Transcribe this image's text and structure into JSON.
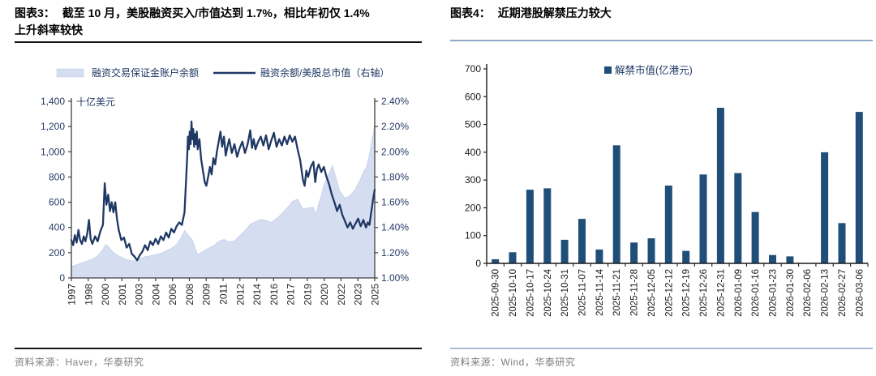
{
  "left_panel": {
    "title_prefix": "图表3：",
    "title_line1": "截至 10 月，美股融资买入/市值达到 1.7%，相比年初仅 1.4%",
    "title_line2": "上升斜率较快",
    "source": "资料来源：Haver，华泰研究"
  },
  "right_panel": {
    "title_prefix": "图表4：",
    "title": "近期港股解禁压力较大",
    "source": "资料来源：Wind，华泰研究"
  },
  "colors": {
    "line_navy": "#1F3864",
    "bar_blue": "#1F4E79",
    "area_fill": "#D5DDF0",
    "area_edge": "#BCC8E6",
    "legend_text": "#1F3864",
    "axis_navy": "#253A66",
    "axis_line": "#404040",
    "tick_text": "#1A1A1A",
    "year_text": "#262626"
  },
  "chart_data": [
    {
      "type": "area+line",
      "title": "截至10月，美股融资买入/市值达到1.7%，相比年初仅1.4%上升斜率较快",
      "unit_label": "十亿美元",
      "legend": [
        "融资交易保证金账户余额",
        "融资余额/美股总市值（右轴）"
      ],
      "x_range": [
        1997,
        2025.83
      ],
      "x_tick_labels": [
        "1997",
        "1998",
        "2000",
        "2001",
        "2003",
        "2004",
        "2006",
        "2008",
        "2009",
        "2011",
        "2012",
        "2014",
        "2016",
        "2017",
        "2019",
        "2020",
        "2022",
        "2023",
        "2025"
      ],
      "left_axis": {
        "min": 0,
        "max": 1400,
        "step": 200,
        "tick_labels": [
          "0",
          "200",
          "400",
          "600",
          "800",
          "1,000",
          "1,200",
          "1,400"
        ]
      },
      "right_axis": {
        "min": 1.0,
        "max": 2.4,
        "step": 0.2,
        "tick_labels": [
          "1.00%",
          "1.20%",
          "1.40%",
          "1.60%",
          "1.80%",
          "2.00%",
          "2.20%",
          "2.40%"
        ]
      },
      "area_series": {
        "name": "融资交易保证金账户余额",
        "points": [
          [
            1997.0,
            90
          ],
          [
            1997.5,
            105
          ],
          [
            1998.0,
            120
          ],
          [
            1998.5,
            135
          ],
          [
            1999.0,
            150
          ],
          [
            1999.5,
            175
          ],
          [
            2000.0,
            225
          ],
          [
            2000.25,
            265
          ],
          [
            2000.5,
            250
          ],
          [
            2000.75,
            225
          ],
          [
            2001.0,
            200
          ],
          [
            2001.5,
            175
          ],
          [
            2002.0,
            155
          ],
          [
            2002.5,
            140
          ],
          [
            2003.0,
            135
          ],
          [
            2003.5,
            150
          ],
          [
            2004.0,
            170
          ],
          [
            2004.5,
            175
          ],
          [
            2005.0,
            185
          ],
          [
            2005.5,
            195
          ],
          [
            2006.0,
            215
          ],
          [
            2006.5,
            235
          ],
          [
            2007.0,
            265
          ],
          [
            2007.5,
            330
          ],
          [
            2007.75,
            375
          ],
          [
            2008.0,
            350
          ],
          [
            2008.5,
            300
          ],
          [
            2009.0,
            185
          ],
          [
            2009.5,
            210
          ],
          [
            2010.0,
            235
          ],
          [
            2010.5,
            255
          ],
          [
            2011.0,
            290
          ],
          [
            2011.5,
            305
          ],
          [
            2012.0,
            285
          ],
          [
            2012.5,
            295
          ],
          [
            2013.0,
            335
          ],
          [
            2013.5,
            375
          ],
          [
            2014.0,
            425
          ],
          [
            2014.5,
            445
          ],
          [
            2015.0,
            465
          ],
          [
            2015.5,
            455
          ],
          [
            2016.0,
            440
          ],
          [
            2016.5,
            470
          ],
          [
            2017.0,
            510
          ],
          [
            2017.5,
            555
          ],
          [
            2018.0,
            605
          ],
          [
            2018.5,
            625
          ],
          [
            2019.0,
            545
          ],
          [
            2019.5,
            555
          ],
          [
            2020.0,
            560
          ],
          [
            2020.25,
            500
          ],
          [
            2020.5,
            590
          ],
          [
            2020.75,
            650
          ],
          [
            2021.0,
            740
          ],
          [
            2021.5,
            830
          ],
          [
            2021.83,
            890
          ],
          [
            2022.0,
            840
          ],
          [
            2022.5,
            690
          ],
          [
            2023.0,
            630
          ],
          [
            2023.5,
            655
          ],
          [
            2024.0,
            705
          ],
          [
            2024.5,
            790
          ],
          [
            2024.83,
            855
          ],
          [
            2025.0,
            865
          ],
          [
            2025.25,
            950
          ],
          [
            2025.5,
            1060
          ],
          [
            2025.67,
            1140
          ],
          [
            2025.83,
            1230
          ]
        ]
      },
      "line_series": {
        "name": "融资余额/美股总市值（右轴）",
        "points": [
          [
            1997.0,
            1.3
          ],
          [
            1997.17,
            1.26
          ],
          [
            1997.33,
            1.34
          ],
          [
            1997.5,
            1.28
          ],
          [
            1997.67,
            1.38
          ],
          [
            1997.83,
            1.3
          ],
          [
            1998.0,
            1.27
          ],
          [
            1998.17,
            1.33
          ],
          [
            1998.33,
            1.29
          ],
          [
            1998.5,
            1.35
          ],
          [
            1998.67,
            1.46
          ],
          [
            1998.83,
            1.31
          ],
          [
            1999.0,
            1.27
          ],
          [
            1999.25,
            1.33
          ],
          [
            1999.5,
            1.29
          ],
          [
            1999.75,
            1.37
          ],
          [
            2000.0,
            1.42
          ],
          [
            2000.17,
            1.75
          ],
          [
            2000.33,
            1.58
          ],
          [
            2000.5,
            1.66
          ],
          [
            2000.67,
            1.53
          ],
          [
            2000.83,
            1.6
          ],
          [
            2001.0,
            1.52
          ],
          [
            2001.17,
            1.6
          ],
          [
            2001.33,
            1.47
          ],
          [
            2001.5,
            1.38
          ],
          [
            2001.75,
            1.3
          ],
          [
            2002.0,
            1.32
          ],
          [
            2002.25,
            1.24
          ],
          [
            2002.5,
            1.27
          ],
          [
            2002.75,
            1.19
          ],
          [
            2003.0,
            1.17
          ],
          [
            2003.25,
            1.14
          ],
          [
            2003.5,
            1.18
          ],
          [
            2003.75,
            1.21
          ],
          [
            2004.0,
            1.26
          ],
          [
            2004.25,
            1.22
          ],
          [
            2004.5,
            1.29
          ],
          [
            2004.75,
            1.26
          ],
          [
            2005.0,
            1.31
          ],
          [
            2005.25,
            1.27
          ],
          [
            2005.5,
            1.33
          ],
          [
            2005.75,
            1.3
          ],
          [
            2006.0,
            1.36
          ],
          [
            2006.25,
            1.32
          ],
          [
            2006.5,
            1.39
          ],
          [
            2006.75,
            1.36
          ],
          [
            2007.0,
            1.41
          ],
          [
            2007.25,
            1.44
          ],
          [
            2007.5,
            1.42
          ],
          [
            2007.75,
            1.52
          ],
          [
            2008.0,
            1.95
          ],
          [
            2008.08,
            2.12
          ],
          [
            2008.17,
            2.02
          ],
          [
            2008.25,
            2.16
          ],
          [
            2008.33,
            2.06
          ],
          [
            2008.42,
            2.24
          ],
          [
            2008.5,
            2.1
          ],
          [
            2008.58,
            2.18
          ],
          [
            2008.67,
            2.04
          ],
          [
            2008.75,
            2.14
          ],
          [
            2008.83,
            2.06
          ],
          [
            2008.92,
            2.16
          ],
          [
            2009.0,
            2.02
          ],
          [
            2009.17,
            2.1
          ],
          [
            2009.33,
            1.94
          ],
          [
            2009.5,
            1.85
          ],
          [
            2009.67,
            1.76
          ],
          [
            2009.83,
            1.73
          ],
          [
            2010.0,
            1.8
          ],
          [
            2010.17,
            1.88
          ],
          [
            2010.33,
            1.82
          ],
          [
            2010.5,
            1.95
          ],
          [
            2010.67,
            1.9
          ],
          [
            2010.83,
            2.0
          ],
          [
            2011.0,
            2.08
          ],
          [
            2011.17,
            2.16
          ],
          [
            2011.33,
            2.04
          ],
          [
            2011.5,
            2.12
          ],
          [
            2011.67,
            1.97
          ],
          [
            2011.83,
            2.04
          ],
          [
            2012.0,
            2.1
          ],
          [
            2012.25,
            1.99
          ],
          [
            2012.5,
            2.06
          ],
          [
            2012.75,
            1.96
          ],
          [
            2013.0,
            2.03
          ],
          [
            2013.25,
            2.08
          ],
          [
            2013.5,
            1.99
          ],
          [
            2013.75,
            2.06
          ],
          [
            2014.0,
            2.17
          ],
          [
            2014.17,
            2.03
          ],
          [
            2014.33,
            2.1
          ],
          [
            2014.5,
            2.02
          ],
          [
            2014.75,
            2.08
          ],
          [
            2015.0,
            2.12
          ],
          [
            2015.25,
            2.05
          ],
          [
            2015.5,
            2.13
          ],
          [
            2015.75,
            2.02
          ],
          [
            2016.0,
            2.09
          ],
          [
            2016.25,
            2.15
          ],
          [
            2016.5,
            2.04
          ],
          [
            2016.75,
            2.1
          ],
          [
            2017.0,
            2.05
          ],
          [
            2017.25,
            2.12
          ],
          [
            2017.5,
            2.06
          ],
          [
            2017.75,
            2.13
          ],
          [
            2018.0,
            2.08
          ],
          [
            2018.25,
            2.12
          ],
          [
            2018.5,
            2.02
          ],
          [
            2018.75,
            1.93
          ],
          [
            2019.0,
            1.78
          ],
          [
            2019.17,
            1.73
          ],
          [
            2019.33,
            1.85
          ],
          [
            2019.5,
            1.8
          ],
          [
            2019.75,
            1.88
          ],
          [
            2020.0,
            1.92
          ],
          [
            2020.17,
            1.76
          ],
          [
            2020.33,
            1.86
          ],
          [
            2020.5,
            1.9
          ],
          [
            2020.75,
            1.84
          ],
          [
            2021.0,
            1.88
          ],
          [
            2021.25,
            1.8
          ],
          [
            2021.5,
            1.74
          ],
          [
            2021.75,
            1.66
          ],
          [
            2022.0,
            1.6
          ],
          [
            2022.25,
            1.53
          ],
          [
            2022.5,
            1.58
          ],
          [
            2022.75,
            1.5
          ],
          [
            2023.0,
            1.45
          ],
          [
            2023.25,
            1.4
          ],
          [
            2023.5,
            1.44
          ],
          [
            2023.75,
            1.39
          ],
          [
            2024.0,
            1.43
          ],
          [
            2024.25,
            1.47
          ],
          [
            2024.5,
            1.41
          ],
          [
            2024.75,
            1.46
          ],
          [
            2025.0,
            1.4
          ],
          [
            2025.17,
            1.44
          ],
          [
            2025.33,
            1.42
          ],
          [
            2025.5,
            1.52
          ],
          [
            2025.67,
            1.62
          ],
          [
            2025.83,
            1.7
          ]
        ]
      }
    },
    {
      "type": "bar",
      "title": "近期港股解禁压力较大",
      "legend": "解禁市值(亿港元)",
      "categories": [
        "2025-09-30",
        "2025-10-10",
        "2025-10-17",
        "2025-10-24",
        "2025-10-31",
        "2025-11-07",
        "2025-11-14",
        "2025-11-21",
        "2025-11-28",
        "2025-12-05",
        "2025-12-12",
        "2025-12-19",
        "2025-12-26",
        "2025-12-31",
        "2026-01-09",
        "2026-01-16",
        "2026-01-23",
        "2026-01-30",
        "2026-02-06",
        "2026-02-13",
        "2026-02-27",
        "2026-03-06"
      ],
      "values": [
        15,
        40,
        265,
        270,
        85,
        160,
        50,
        425,
        75,
        90,
        280,
        45,
        320,
        560,
        325,
        185,
        30,
        25,
        0,
        400,
        145,
        545
      ],
      "ylim": [
        0,
        700
      ],
      "ystep": 100,
      "y_tick_labels": [
        "0",
        "100",
        "200",
        "300",
        "400",
        "500",
        "600",
        "700"
      ]
    }
  ]
}
